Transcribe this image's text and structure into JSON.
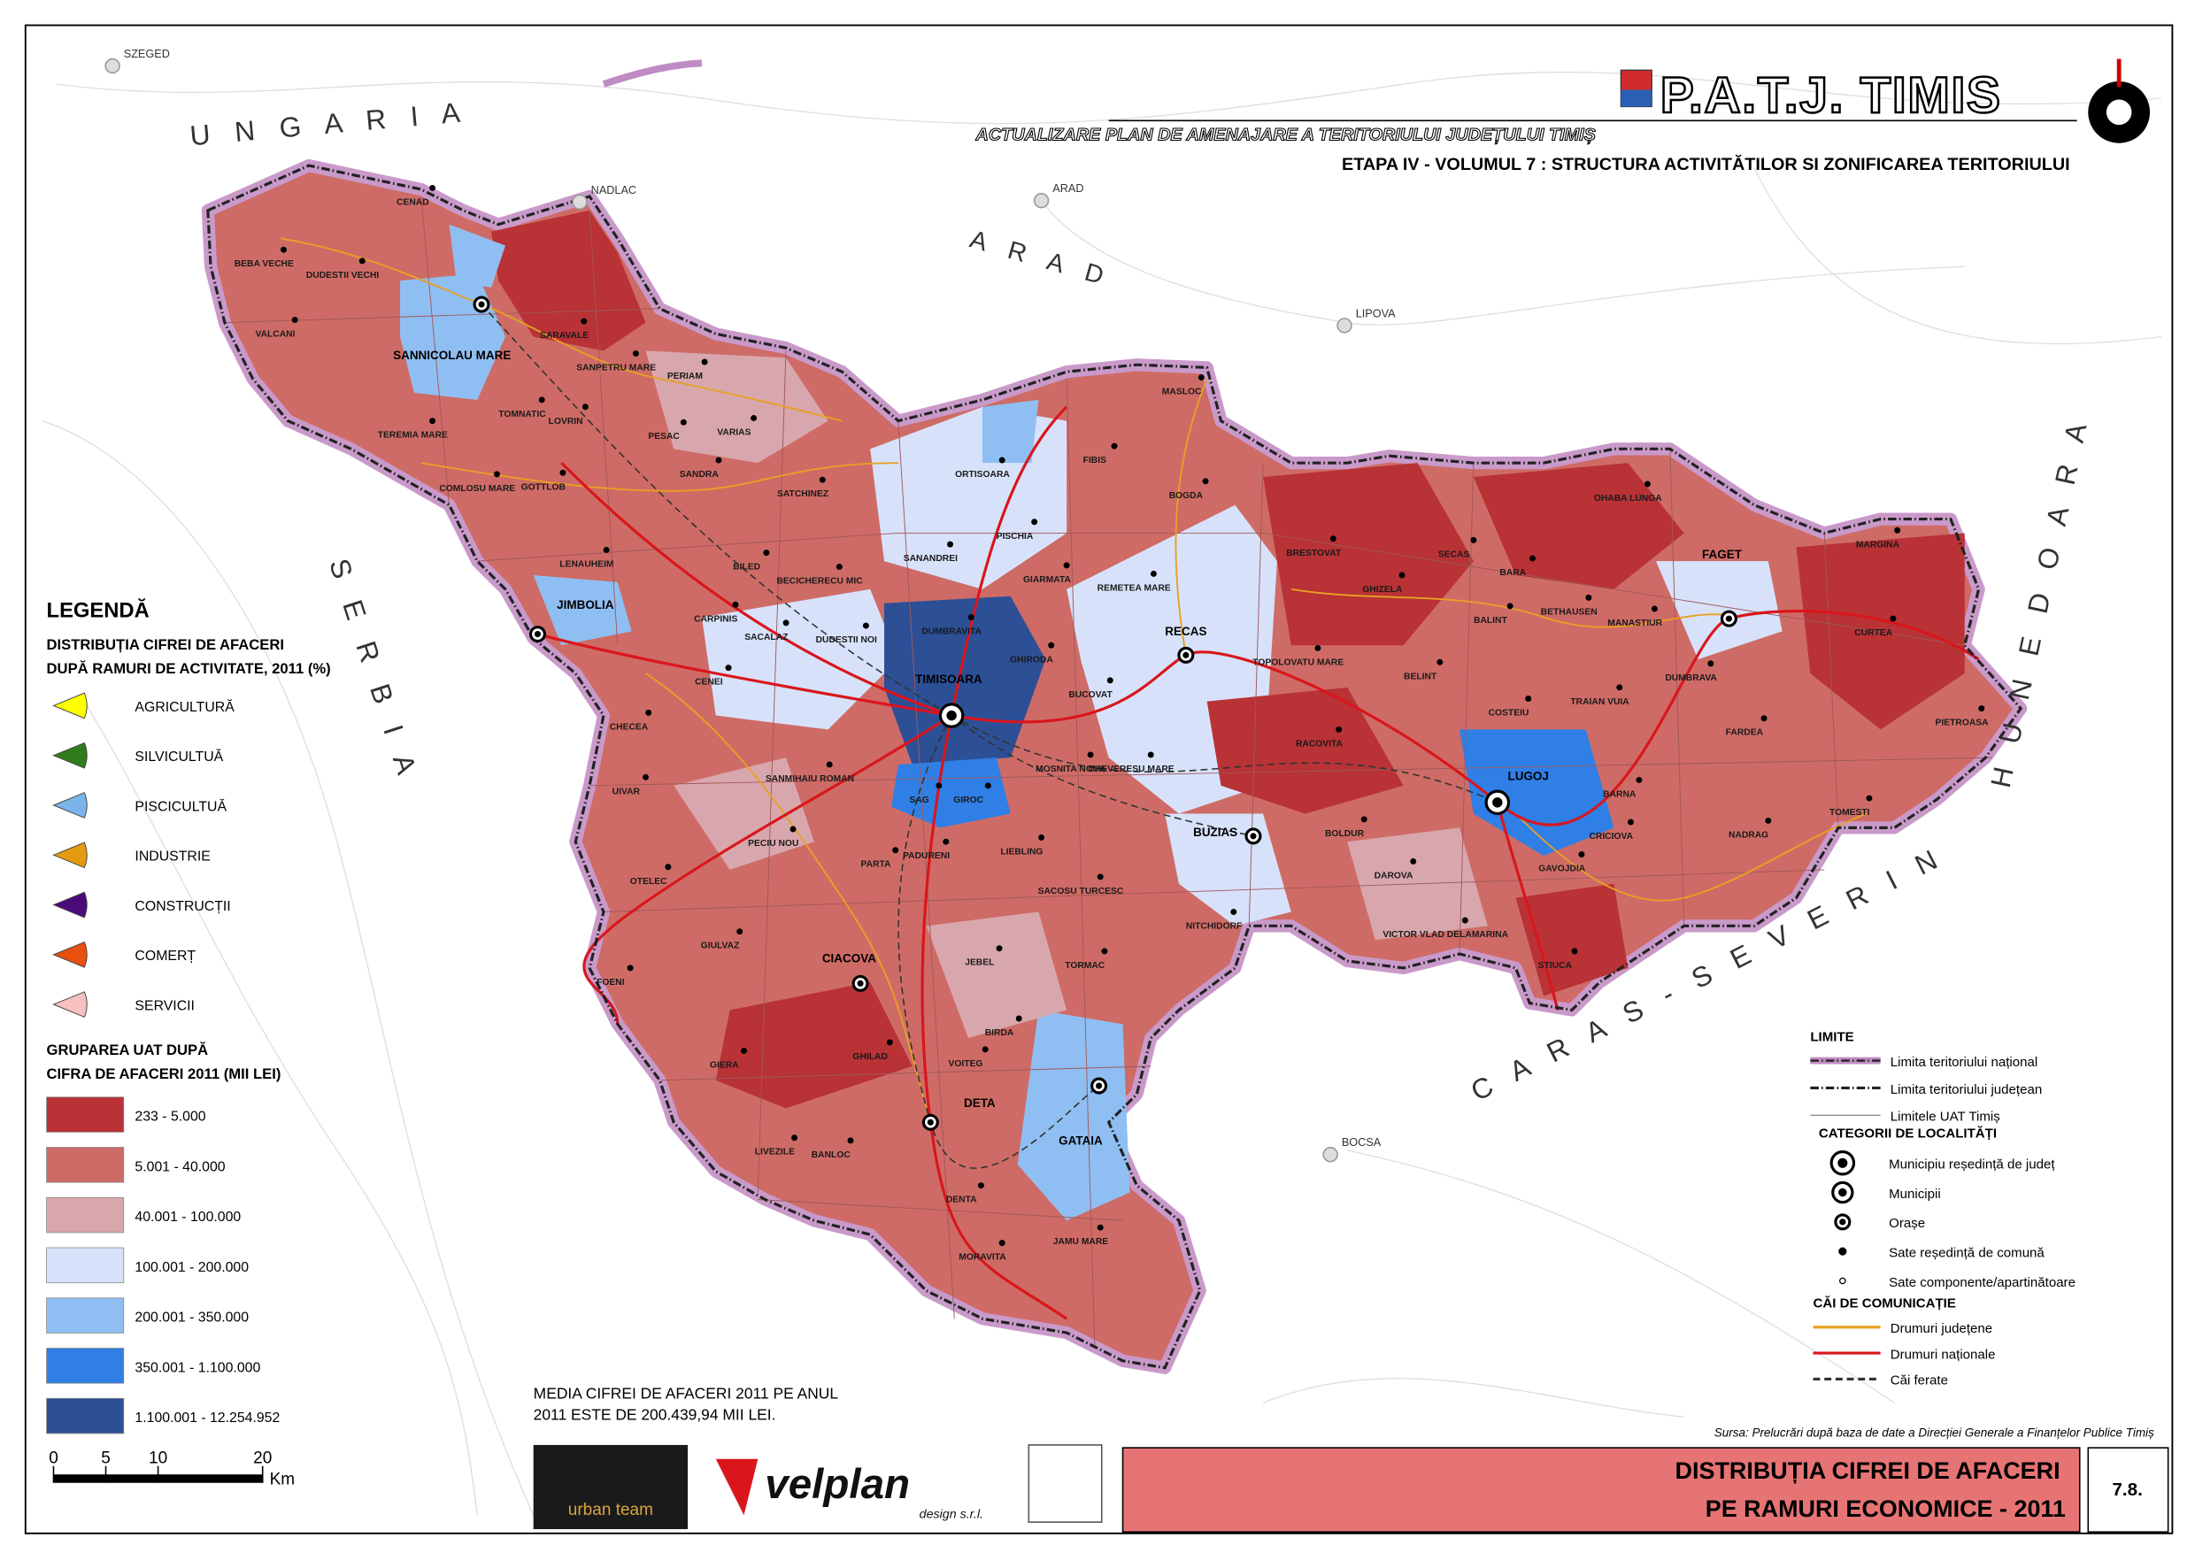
{
  "header": {
    "title": "P.A.T.J. TIMIS",
    "subtitle": "ACTUALIZARE PLAN DE AMENAJARE A TERITORIULUI JUDEȚULUI TIMIȘ",
    "volume": "ETAPA IV - VOLUMUL 7 : STRUCTURA ACTIVITĂTILOR SI ZONIFICAREA TERITORIULUI"
  },
  "neighbors": {
    "regions": [
      "U N G A R I A",
      "S E R B I A",
      "A R A D",
      "C A R A S - S E V E R I N",
      "H U N E D O A R A"
    ],
    "cities": [
      "SZEGED",
      "NADLAC",
      "ARAD",
      "LIPOVA",
      "BOCSA"
    ]
  },
  "localities": {
    "towns": [
      "TIMISOARA",
      "LUGOJ",
      "SANNICOLAU MARE",
      "JIMBOLIA",
      "RECAS",
      "BUZIAS",
      "FAGET",
      "CIACOVA",
      "DETA",
      "GATAIA"
    ],
    "communes": [
      "BEBA VECHE",
      "DUDESTII VECHI",
      "CENAD",
      "VALCANI",
      "SARAVALE",
      "SANPETRU MARE",
      "PERIAM",
      "TOMNATIC",
      "LOVRIN",
      "TEREMIA MARE",
      "PESAC",
      "VARIAS",
      "COMLOSU MARE",
      "GOTTLOB",
      "SANDRA",
      "SATCHINEZ",
      "LENAUHEIM",
      "MASLOC",
      "FIBIS",
      "BOGDA",
      "ORTISOARA",
      "PISCHIA",
      "BILED",
      "BECICHERECU MIC",
      "SANANDREI",
      "GIARMATA",
      "REMETEA MARE",
      "CARPINIS",
      "SACALAZ",
      "DUDESTII NOI",
      "DUMBRAVITA",
      "GHIRODA",
      "CENEI",
      "CHECEA",
      "BUCOVAT",
      "UIVAR",
      "SANMIHAIU ROMAN",
      "MOSNITA NOUA",
      "CHEVERESU MARE",
      "SAG",
      "GIROC",
      "PECIU NOU",
      "OTELEC",
      "PARTA",
      "PADURENI",
      "LIEBLING",
      "SACOSU TURCESC",
      "BRESTOVAT",
      "GHIZELA",
      "SECAS",
      "BARA",
      "BALINT",
      "BETHAUSEN",
      "MANASTIUR",
      "TOPOLOVATU MARE",
      "BELINT",
      "COSTEIU",
      "TRAIAN VUIA",
      "DUMBRAVA",
      "OHABA LUNGA",
      "MARGINA",
      "CURTEA",
      "PIETROASA",
      "FARDEA",
      "RACOVITA",
      "BARNA",
      "TOMESTI",
      "NADRAG",
      "BOLDUR",
      "DAROVA",
      "CRICIOVA",
      "GAVOJDIA",
      "VICTOR VLAD DELAMARINA",
      "NITCHIDORF",
      "FOENI",
      "GIULVAZ",
      "JEBEL",
      "TORMAC",
      "GHILAD",
      "BIRDA",
      "VOITEG",
      "GIERA",
      "LIVEZILE",
      "BANLOC",
      "DENTA",
      "STIUCA",
      "MORAVITA",
      "JAMU MARE"
    ]
  },
  "legend": {
    "title": "LEGENDĂ",
    "sectors_title": [
      "DISTRIBUȚIA CIFREI DE AFACERI",
      "DUPĂ RAMURI DE ACTIVITATE, 2011 (%)"
    ],
    "sectors": [
      {
        "name": "AGRICULTURĂ",
        "color": "#ffff00"
      },
      {
        "name": "SILVICULTUĂ",
        "color": "#2e7d1a"
      },
      {
        "name": "PISCICULTUĂ",
        "color": "#7ab4ea"
      },
      {
        "name": "INDUSTRIE",
        "color": "#e39a10"
      },
      {
        "name": "CONSTRUCȚII",
        "color": "#4b0a7a"
      },
      {
        "name": "COMERȚ",
        "color": "#e8500f"
      },
      {
        "name": "SERVICII",
        "color": "#f7c1c1"
      }
    ],
    "classes_title": [
      "GRUPAREA UAT DUPĂ",
      "CIFRA DE AFACERI 2011 (MII LEI)"
    ],
    "classes": [
      {
        "label": "233 - 5.000",
        "color": "#b83236"
      },
      {
        "label": "5.001 - 40.000",
        "color": "#cf6b66"
      },
      {
        "label": "40.001 - 100.000",
        "color": "#d8a7ad"
      },
      {
        "label": "100.001 - 200.000",
        "color": "#d7e2fa"
      },
      {
        "label": "200.001 - 350.000",
        "color": "#8fbff2"
      },
      {
        "label": "350.001 - 1.100.000",
        "color": "#2f7fe6"
      },
      {
        "label": "1.100.001 - 12.254.952",
        "color": "#2c4f96"
      }
    ]
  },
  "note": [
    "MEDIA CIFREI DE AFACERI 2011 PE ANUL",
    "2011 ESTE DE 200.439,94 MII LEI."
  ],
  "scale": {
    "ticks": [
      0,
      5,
      10,
      20
    ],
    "unit": "Km"
  },
  "limits_legend": {
    "limits_title": "LIMITE",
    "limits": [
      "Limita teritoriului național",
      "Limita teritoriului județean",
      "Limitele UAT Timiș"
    ],
    "settlements_title": "CATEGORII DE LOCALITĂȚI",
    "settlements": [
      "Municipiu reședință de județ",
      "Municipii",
      "Orașe",
      "Sate reședință de comună",
      "Sate componente/apartinătoare"
    ],
    "roads_title": "CĂI DE COMUNICAȚIE",
    "roads": [
      "Drumuri județene",
      "Drumuri naționale",
      "Căi ferate"
    ]
  },
  "source": "Sursa: Prelucrări după baza de date a Direcției Generale a Finanțelor Publice Timiș",
  "logos": {
    "urban": "urban team",
    "velplan": "velplan",
    "velplan_sub": "design s.r.l."
  },
  "footer": {
    "title": [
      "DISTRIBUȚIA CIFREI DE AFACERI",
      "PE RAMURI ECONOMICE - 2011"
    ],
    "number": "7.8."
  }
}
